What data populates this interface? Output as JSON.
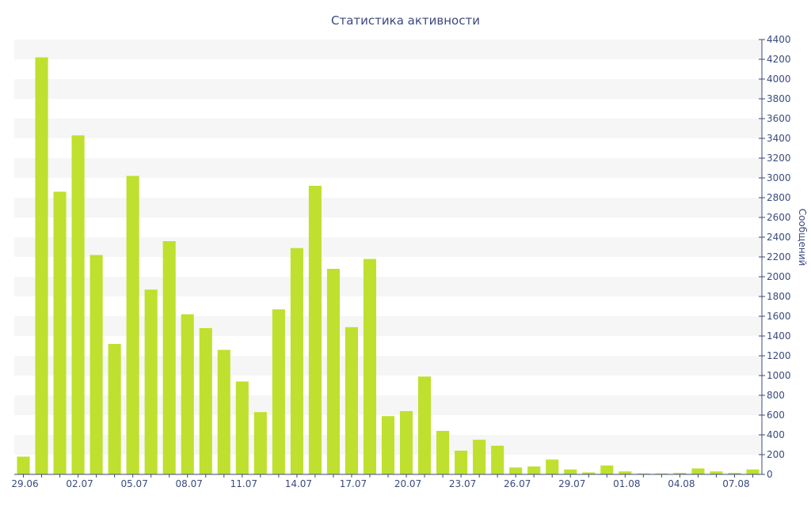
{
  "chart_data": {
    "type": "bar",
    "title": "Статистика активности",
    "xlabel": "",
    "ylabel": "Сообщений",
    "ylim": [
      0,
      4400
    ],
    "ytick_step": 200,
    "grid": "alternating horizontal bands",
    "bar_color": "#bfe02e",
    "axis_color": "#3b4a7e",
    "band_color": "#f6f6f6",
    "x_tick_labels": [
      "29.06",
      "02.07",
      "05.07",
      "08.07",
      "11.07",
      "14.07",
      "17.07",
      "20.07",
      "23.07",
      "26.07",
      "29.07",
      "01.08",
      "04.08",
      "07.08"
    ],
    "x_tick_every": 3,
    "categories": [
      "29.06",
      "30.06",
      "01.07",
      "02.07",
      "03.07",
      "04.07",
      "05.07",
      "06.07",
      "07.07",
      "08.07",
      "09.07",
      "10.07",
      "11.07",
      "12.07",
      "13.07",
      "14.07",
      "15.07",
      "16.07",
      "17.07",
      "18.07",
      "19.07",
      "20.07",
      "21.07",
      "22.07",
      "23.07",
      "24.07",
      "25.07",
      "26.07",
      "27.07",
      "28.07",
      "29.07",
      "30.07",
      "31.07",
      "01.08",
      "02.08",
      "03.08",
      "04.08",
      "05.08",
      "06.08",
      "07.08",
      "08.08"
    ],
    "values": [
      180,
      4220,
      2860,
      3430,
      2220,
      1320,
      3020,
      1870,
      2360,
      1620,
      1480,
      1260,
      940,
      630,
      1670,
      2290,
      2920,
      2080,
      1490,
      2180,
      590,
      640,
      990,
      440,
      240,
      350,
      290,
      70,
      80,
      150,
      50,
      20,
      90,
      30,
      10,
      10,
      15,
      60,
      30,
      15,
      50
    ]
  }
}
